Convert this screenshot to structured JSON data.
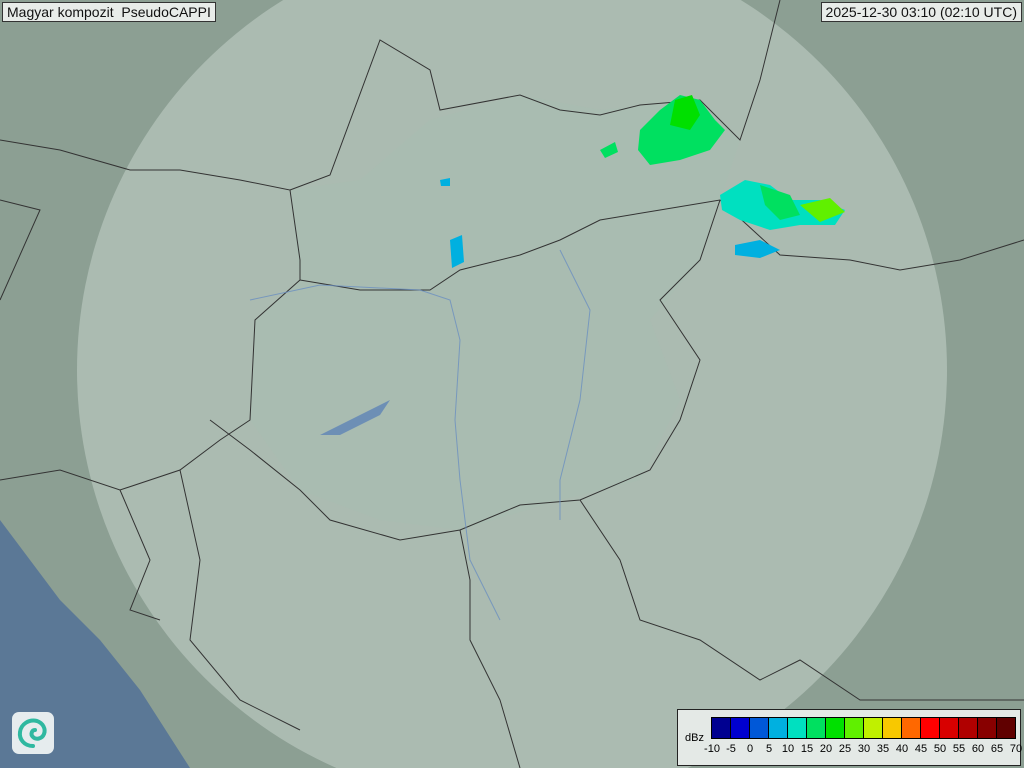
{
  "header": {
    "title": "Magyar kompozit  PseudoCAPPI",
    "timestamp": "2025-12-30 03:10 (02:10 UTC)"
  },
  "legend": {
    "unit": "dBz",
    "ticks": [
      "-10",
      "-5",
      "0",
      "5",
      "10",
      "15",
      "20",
      "25",
      "30",
      "35",
      "40",
      "45",
      "50",
      "55",
      "60",
      "65",
      "70"
    ],
    "colors": [
      "#000090",
      "#0000d0",
      "#0058d8",
      "#00b0e0",
      "#00e0c0",
      "#00e060",
      "#00e000",
      "#60f000",
      "#c0f000",
      "#f8c800",
      "#ff6800",
      "#ff0000",
      "#d80000",
      "#b00000",
      "#880000",
      "#600000"
    ]
  },
  "map": {
    "land_color": "#8c9f93",
    "coverage_color": "#c4d2cb",
    "sea_color": "#5b7896",
    "logo": "weather-service-swirl-logo"
  }
}
